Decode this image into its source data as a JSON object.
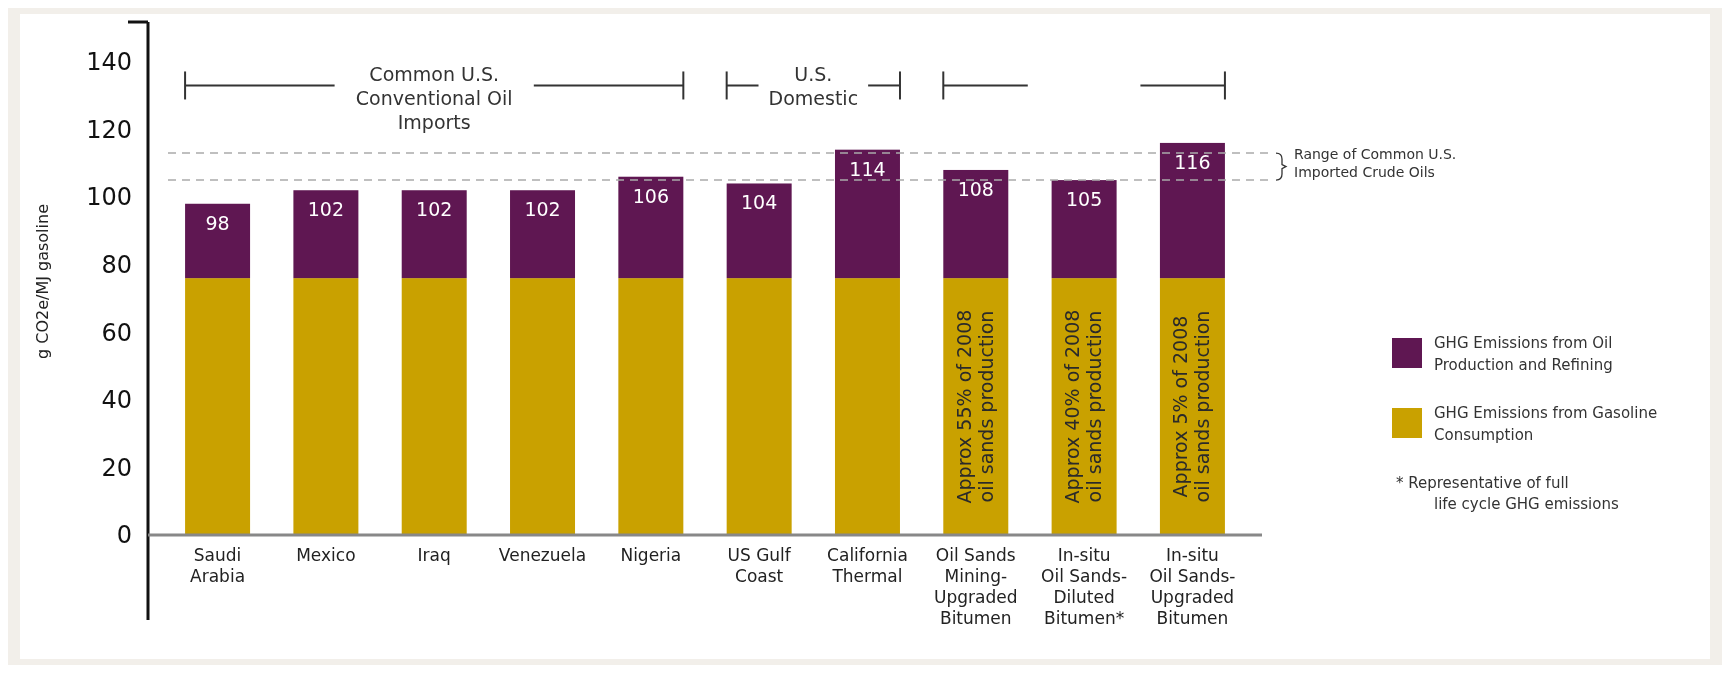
{
  "chart_data": {
    "type": "bar",
    "stacked": true,
    "ylabel": "g CO2e/MJ gasoline",
    "categories": [
      "Saudi Arabia",
      "Mexico",
      "Iraq",
      "Venezuela",
      "Nigeria",
      "US Gulf Coast",
      "California Thermal",
      "Oil Sands Mining-Upgraded Bitumen",
      "In-situ Oil Sands-Diluted Bitumen*",
      "In-situ Oil Sands-Upgraded Bitumen"
    ],
    "series": [
      {
        "name": "GHG Emissions from Gasoline Consumption",
        "color": "#c9a100",
        "values": [
          76,
          76,
          76,
          76,
          76,
          76,
          76,
          76,
          76,
          76
        ]
      },
      {
        "name": "GHG Emissions from Oil Production and Refining",
        "color": "#5f1752",
        "values": [
          22,
          26,
          26,
          26,
          30,
          28,
          38,
          32,
          29,
          40
        ]
      }
    ],
    "totals": [
      "98",
      "102",
      "102",
      "102",
      "106",
      "104",
      "114",
      "108",
      "105",
      "116"
    ],
    "ylim": [
      0,
      150
    ],
    "yticks": [
      0,
      20,
      40,
      60,
      80,
      100,
      120,
      140
    ],
    "ref_lines": [
      {
        "axis": "y",
        "value": 105,
        "color": "#aaaaaa",
        "line_style": "dashed"
      },
      {
        "axis": "y",
        "value": 113,
        "label": "Range of Common U.S. Imported Crude Oils",
        "color": "#aaaaaa",
        "line_style": "dashed"
      }
    ],
    "legend": "right",
    "annotations": [
      "Common U.S. Conventional Oil Imports",
      "U.S. Domestic",
      "Approx 55% of 2008 oil sands production",
      "Approx 40% of 2008 oil sands production",
      "Approx 5% of 2008 oil sands production",
      "* Representative of full life cycle GHG emissions"
    ]
  }
}
